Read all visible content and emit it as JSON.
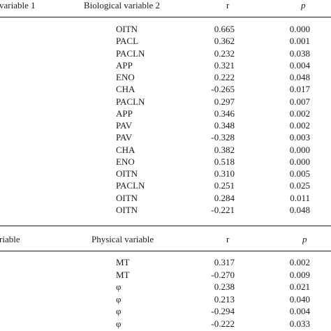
{
  "table1": {
    "headers": {
      "col1": "variable 1",
      "col2": "Biological variable 2",
      "col3": "r",
      "col4": "p"
    },
    "rows": [
      {
        "var": "OITN",
        "r": "0.665",
        "p": "0.000"
      },
      {
        "var": "PACL",
        "r": "0.362",
        "p": "0.001"
      },
      {
        "var": "PACLN",
        "r": "0.232",
        "p": "0.038"
      },
      {
        "var": "APP",
        "r": "0.321",
        "p": "0.004"
      },
      {
        "var": "ENO",
        "r": "0.222",
        "p": "0.048"
      },
      {
        "var": "CHA",
        "r": "-0.265",
        "p": "0.017"
      },
      {
        "var": "PACLN",
        "r": "0.297",
        "p": "0.007"
      },
      {
        "var": "APP",
        "r": "0.346",
        "p": "0.002"
      },
      {
        "var": "PAV",
        "r": "0.348",
        "p": "0.002"
      },
      {
        "var": "PAV",
        "r": "-0.328",
        "p": "0.003"
      },
      {
        "var": "CHA",
        "r": "0.382",
        "p": "0.000"
      },
      {
        "var": "ENO",
        "r": "0.518",
        "p": "0.000"
      },
      {
        "var": "OITN",
        "r": "0.310",
        "p": "0.005"
      },
      {
        "var": "PACLN",
        "r": "0.251",
        "p": "0.025"
      },
      {
        "var": "OITN",
        "r": "0.284",
        "p": "0.011"
      },
      {
        "var": "OITN",
        "r": "-0.221",
        "p": "0.048"
      }
    ]
  },
  "table2": {
    "headers": {
      "col1": "riable",
      "col2": "Physical variable",
      "col3": "r",
      "col4": "p"
    },
    "rows": [
      {
        "var": "MT",
        "r": "0.317",
        "p": "0.002"
      },
      {
        "var": "MT",
        "r": "-0.270",
        "p": "0.009"
      },
      {
        "var": "φ",
        "r": "0.238",
        "p": "0.021"
      },
      {
        "var": "φ",
        "r": "0.213",
        "p": "0.040"
      },
      {
        "var": "φ",
        "r": "-0.294",
        "p": "0.004"
      },
      {
        "var": "φ",
        "r": "-0.222",
        "p": "0.033"
      }
    ]
  }
}
